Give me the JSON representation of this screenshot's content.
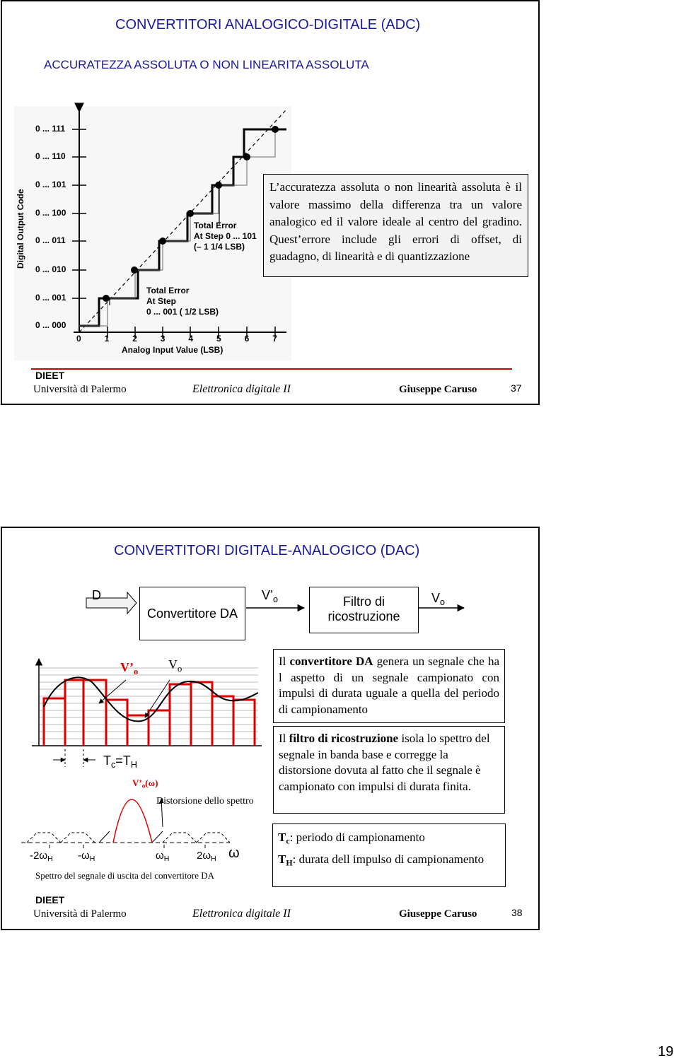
{
  "page1": {
    "title": "CONVERTITORI ANALOGICO-DIGITALE (ADC)",
    "subtitle": "ACCURATEZZA ASSOLUTA O NON LINEARITA ASSOLUTA",
    "figure": {
      "y_axis_label": "Digital Output Code",
      "x_axis_label": "Analog Input Value (LSB)",
      "y_codes": [
        "0 ... 111",
        "0 ... 110",
        "0 ... 101",
        "0 ... 100",
        "0 ... 011",
        "0 ... 010",
        "0 ... 001",
        "0 ... 000"
      ],
      "x_ticks": [
        "0",
        "1",
        "2",
        "3",
        "4",
        "5",
        "6",
        "7"
      ],
      "note_1": [
        "Total Error",
        "At Step 0 ... 101",
        "(– 1 1/4 LSB)"
      ],
      "note_2": [
        "Total Error",
        "At Step",
        "0 ... 001 ( 1/2 LSB)"
      ]
    },
    "text": "L’accuratezza assoluta o non linearità assoluta è il valore massimo della differenza tra un valore analogico ed il valore ideale al centro del gradino. Quest’errore include gli errori di offset, di guadagno, di linearità  e di quantizzazione",
    "footer": {
      "dept": "DIEET",
      "university": "Università di Palermo",
      "course": "Elettronica digitale II",
      "author": "Giuseppe Caruso",
      "page": "37"
    }
  },
  "page2": {
    "title": "CONVERTITORI DIGITALE-ANALOGICO (DAC)",
    "diagram": {
      "input": "D",
      "block_1": "Convertitore DA",
      "signal_1": [
        "V’",
        "o"
      ],
      "block_2": [
        "Filtro di",
        "ricostruzione"
      ],
      "signal_2": [
        "V",
        "o"
      ]
    },
    "waveform": {
      "label_1": [
        "V’",
        "o"
      ],
      "label_2": [
        "V",
        "o"
      ],
      "period": [
        "T",
        "c",
        "=T",
        "H"
      ]
    },
    "spectrum": {
      "label": [
        "V’",
        "o",
        "(ω)"
      ],
      "distortion": "Distorsione dello spettro",
      "ticks": [
        [
          "-2ω",
          "H"
        ],
        [
          "-ω",
          "H"
        ],
        [
          "ω",
          "H"
        ],
        [
          "2ω",
          "H"
        ]
      ],
      "axis": "ω",
      "caption": "Spettro del segnale di uscita del convertitore DA"
    },
    "para_1": [
      "Il ",
      "convertitore DA",
      " genera un segnale che ha l aspetto di un segnale campionato con impulsi di durata uguale a quella del periodo di campionamento"
    ],
    "para_2": [
      "Il ",
      "filtro di ricostruzione",
      " isola lo spettro del segnale in banda base e corregge la distorsione dovuta al fatto che il segnale è campionato con impulsi di durata finita."
    ],
    "definitions": [
      {
        "symbol": [
          "T",
          "c"
        ],
        "text": ": periodo di campionamento"
      },
      {
        "symbol": [
          "T",
          "H"
        ],
        "text": ": durata dell impulso di campionamento"
      }
    ],
    "footer": {
      "dept": "DIEET",
      "university": "Università di Palermo",
      "course": "Elettronica digitale II",
      "author": "Giuseppe Caruso",
      "page": "38"
    }
  },
  "page_number": "19"
}
